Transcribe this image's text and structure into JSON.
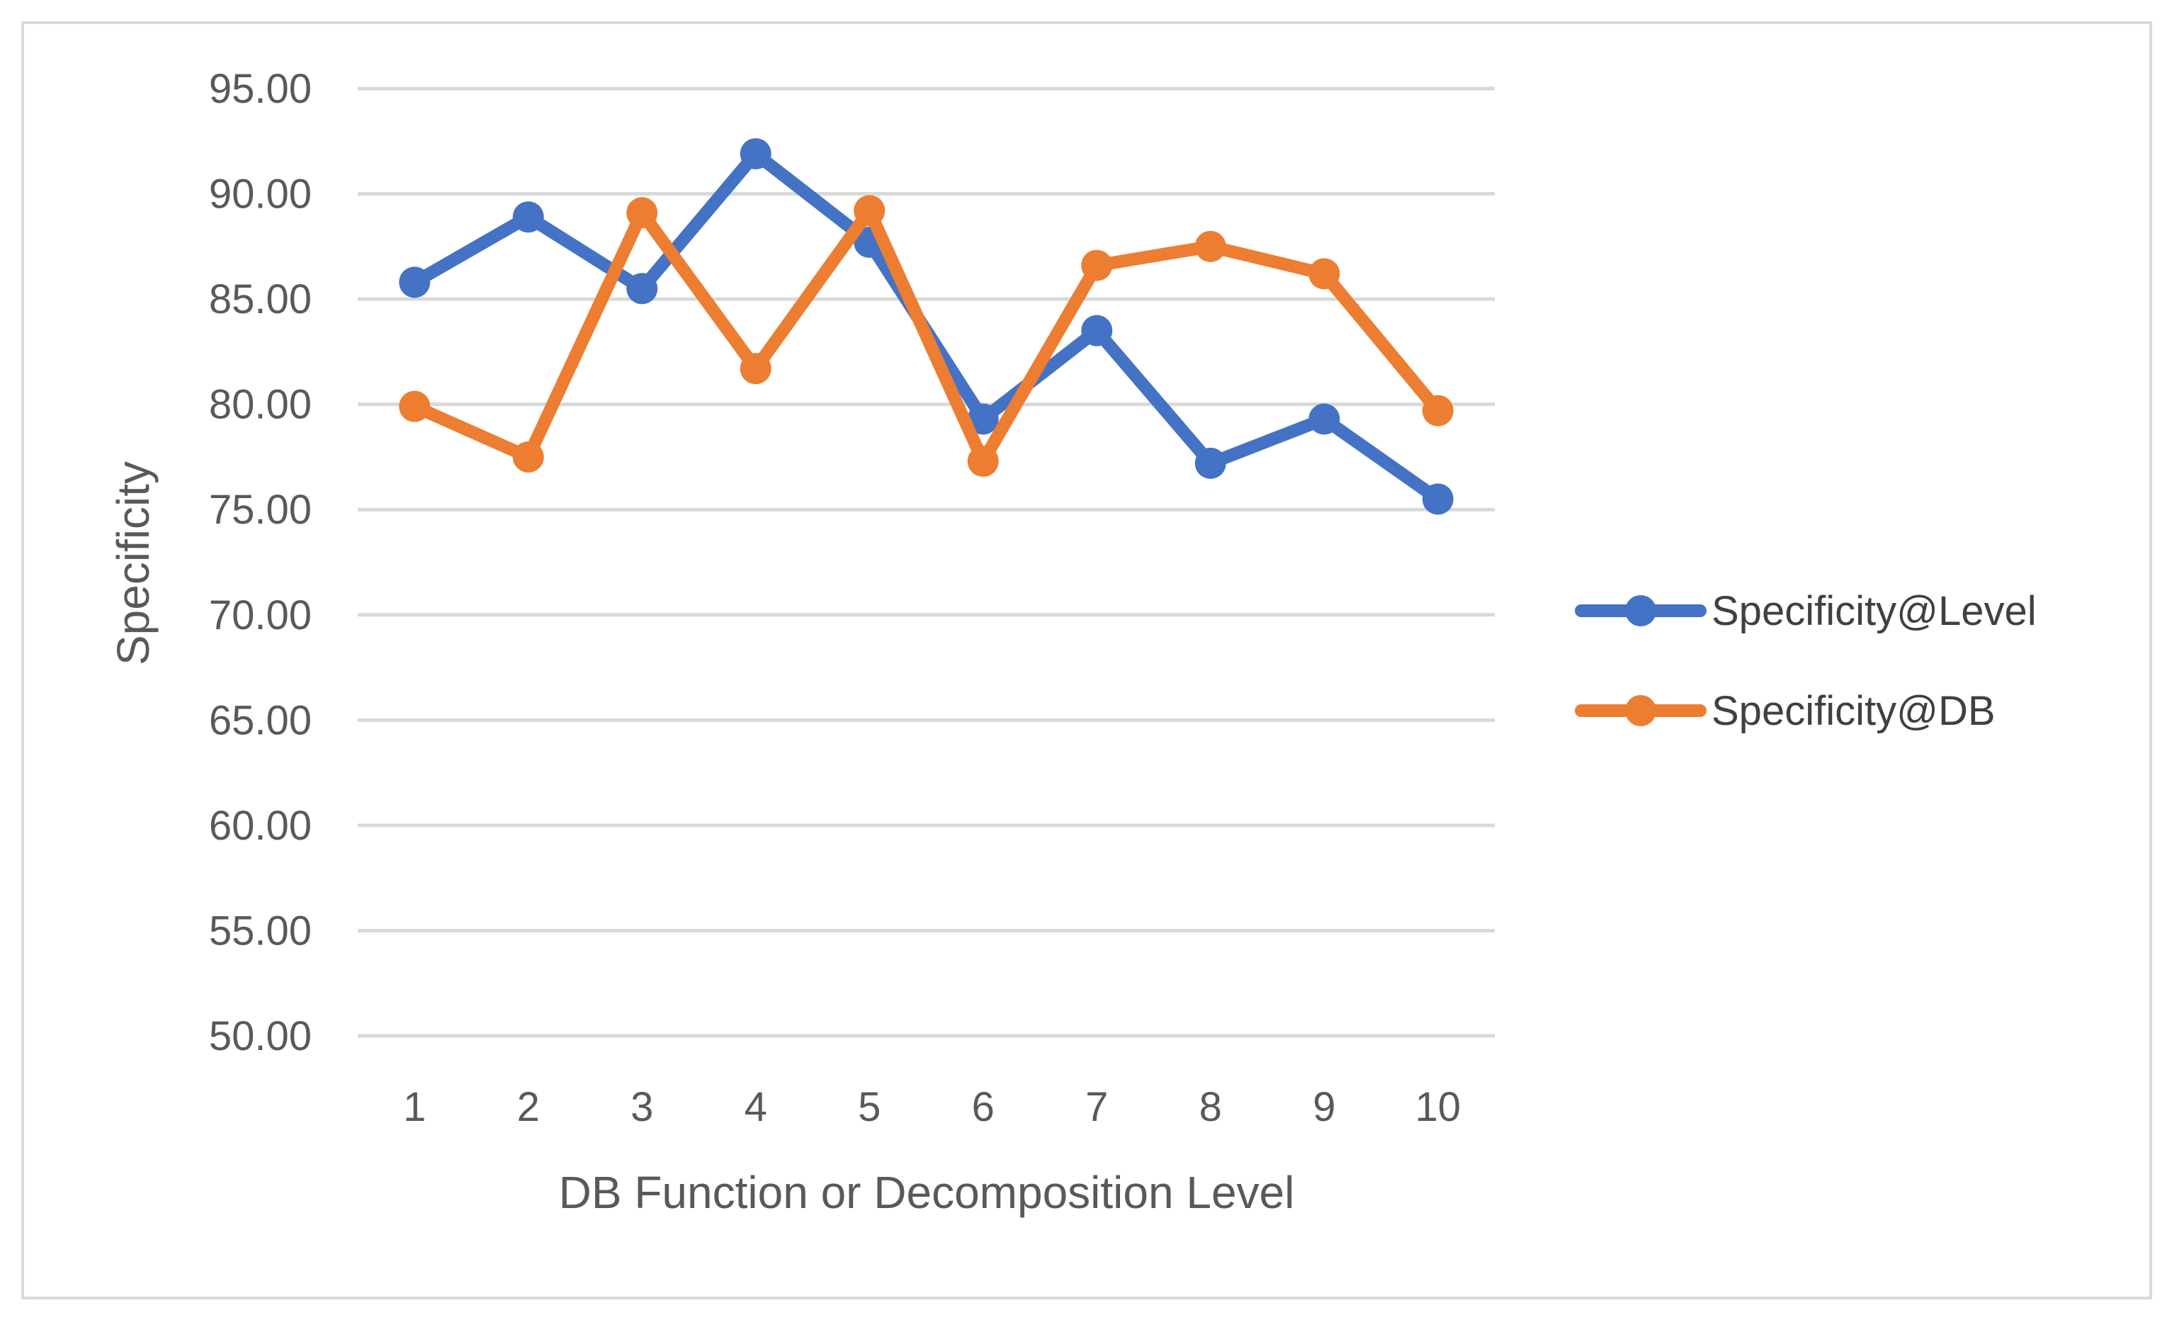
{
  "chart_data": {
    "type": "line",
    "title": "",
    "xlabel": "DB Function or Decomposition Level",
    "ylabel": "Specificity",
    "ylim": [
      50,
      95
    ],
    "y_ticks": [
      50,
      55,
      60,
      65,
      70,
      75,
      80,
      85,
      90,
      95
    ],
    "y_tick_labels": [
      "50.00",
      "55.00",
      "60.00",
      "65.00",
      "70.00",
      "75.00",
      "80.00",
      "85.00",
      "90.00",
      "95.00"
    ],
    "categories": [
      "1",
      "2",
      "3",
      "4",
      "5",
      "6",
      "7",
      "8",
      "9",
      "10"
    ],
    "grid": true,
    "legend_position": "right",
    "series": [
      {
        "name": "Specificity@Level",
        "color": "#4472c4",
        "values": [
          85.8,
          88.9,
          85.5,
          91.9,
          87.7,
          79.3,
          83.5,
          77.2,
          79.3,
          75.5
        ]
      },
      {
        "name": "Specificity@DB",
        "color": "#ed7d31",
        "values": [
          79.9,
          77.5,
          89.1,
          81.7,
          89.2,
          77.3,
          86.6,
          87.5,
          86.2,
          79.7
        ]
      }
    ]
  }
}
